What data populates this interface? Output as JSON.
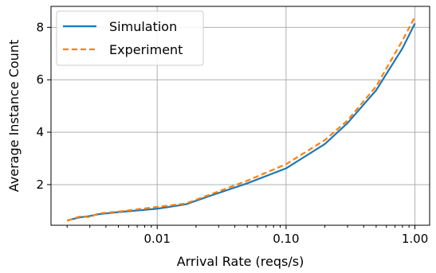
{
  "chart_data": {
    "type": "line",
    "xlabel": "Arrival Rate (reqs/s)",
    "ylabel": "Average Instance Count",
    "xscale": "log",
    "xlim": [
      0.0015,
      1.3
    ],
    "ylim": [
      0.45,
      8.8
    ],
    "xticks": [
      {
        "value": 0.01,
        "label": "0.01"
      },
      {
        "value": 0.1,
        "label": "0.10"
      },
      {
        "value": 1.0,
        "label": "1.00"
      }
    ],
    "yticks": [
      {
        "value": 2,
        "label": "2"
      },
      {
        "value": 4,
        "label": "4"
      },
      {
        "value": 6,
        "label": "6"
      },
      {
        "value": 8,
        "label": "8"
      }
    ],
    "grid": true,
    "legend": {
      "position": "top-left"
    },
    "series": [
      {
        "name": "Simulation",
        "color": "#1f77b4",
        "dash": "solid",
        "x": [
          0.002,
          0.0025,
          0.003,
          0.0035,
          0.005,
          0.01,
          0.0167,
          0.025,
          0.05,
          0.1,
          0.2,
          0.3,
          0.5,
          0.8,
          1.0
        ],
        "y": [
          0.63,
          0.75,
          0.8,
          0.87,
          0.95,
          1.08,
          1.25,
          1.55,
          2.05,
          2.62,
          3.55,
          4.35,
          5.6,
          7.2,
          8.15
        ]
      },
      {
        "name": "Experiment",
        "color": "#ff7f0e",
        "dash": "dashed",
        "x": [
          0.002,
          0.0025,
          0.003,
          0.0035,
          0.005,
          0.01,
          0.0167,
          0.025,
          0.05,
          0.1,
          0.2,
          0.3,
          0.5,
          0.8,
          1.0
        ],
        "y": [
          0.62,
          0.78,
          0.76,
          0.9,
          0.97,
          1.15,
          1.28,
          1.6,
          2.15,
          2.78,
          3.7,
          4.45,
          5.75,
          7.5,
          8.4
        ]
      }
    ]
  }
}
